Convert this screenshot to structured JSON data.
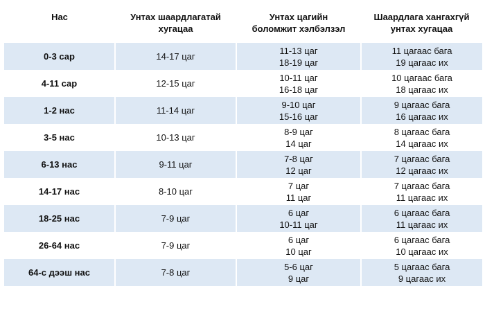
{
  "headers": {
    "age": "Нас",
    "recommended": [
      "Унтах шаардлагатай",
      "хугацаа"
    ],
    "possible": [
      "Унтах цагийн",
      "боломжит хэлбэлзэл"
    ],
    "not_recommended": [
      "Шаардлага хангахгүй",
      "унтах хугацаа"
    ]
  },
  "rows": [
    {
      "age": "0-3 сар",
      "recommended": "14-17 цаг",
      "possible": [
        "11-13 цаг",
        "18-19 цаг"
      ],
      "not_recommended": [
        "11 цагаас бага",
        "19 цагаас их"
      ]
    },
    {
      "age": "4-11 сар",
      "recommended": "12-15 цаг",
      "possible": [
        "10-11 цаг",
        "16-18 цаг"
      ],
      "not_recommended": [
        "10 цагаас бага",
        "18 цагаас их"
      ]
    },
    {
      "age": "1-2 нас",
      "recommended": "11-14 цаг",
      "possible": [
        "9-10 цаг",
        "15-16 цаг"
      ],
      "not_recommended": [
        "9 цагаас бага",
        "16 цагаас их"
      ]
    },
    {
      "age": "3-5 нас",
      "recommended": "10-13 цаг",
      "possible": [
        "8-9 цаг",
        "14 цаг"
      ],
      "not_recommended": [
        "8 цагаас бага",
        "14 цагаас их"
      ]
    },
    {
      "age": "6-13 нас",
      "recommended": "9-11 цаг",
      "possible": [
        "7-8 цаг",
        "12 цаг"
      ],
      "not_recommended": [
        "7 цагаас бага",
        "12 цагаас их"
      ]
    },
    {
      "age": "14-17 нас",
      "recommended": "8-10 цаг",
      "possible": [
        "7 цаг",
        "11 цаг"
      ],
      "not_recommended": [
        "7 цагаас бага",
        "11 цагаас их"
      ]
    },
    {
      "age": "18-25 нас",
      "recommended": "7-9 цаг",
      "possible": [
        "6 цаг",
        "10-11 цаг"
      ],
      "not_recommended": [
        "6 цагаас бага",
        "11 цагаас их"
      ]
    },
    {
      "age": "26-64 нас",
      "recommended": "7-9 цаг",
      "possible": [
        "6 цаг",
        "10 цаг"
      ],
      "not_recommended": [
        "6 цагаас бага",
        "10 цагаас их"
      ]
    },
    {
      "age": "64-с дээш нас",
      "recommended": "7-8 цаг",
      "possible": [
        "5-6 цаг",
        "9 цаг"
      ],
      "not_recommended": [
        "5 цагаас бага",
        "9 цагаас их"
      ]
    }
  ],
  "colors": {
    "stripe": "#dde8f4",
    "background": "#ffffff",
    "text": "#111111"
  }
}
